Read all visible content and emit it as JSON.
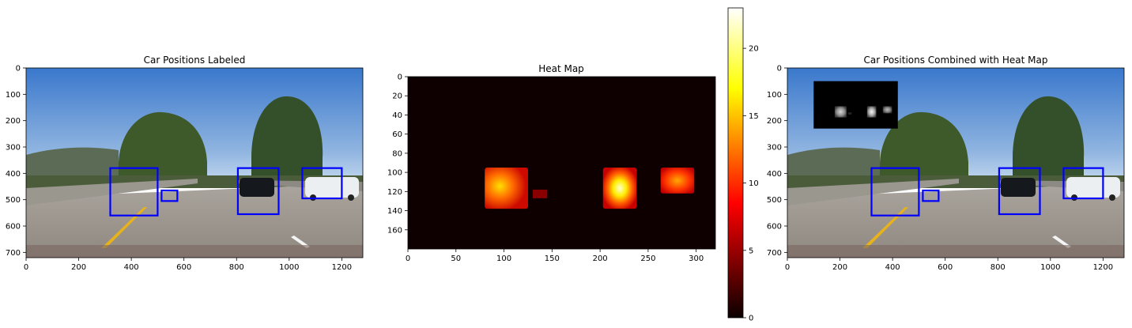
{
  "figure": {
    "colors": {
      "sky_top": "#3f7fd0",
      "sky_bottom": "#bcd3ec",
      "road": "#a39d95",
      "box": "#0000ff",
      "heat_bg": "#0e0000",
      "lane_yellow": "#e8b21c"
    }
  },
  "chart_data": [
    {
      "type": "image",
      "title": "Car Positions Labeled",
      "xlim": [
        0,
        1280
      ],
      "ylim": [
        720,
        0
      ],
      "xticks": [
        "0",
        "200",
        "400",
        "600",
        "800",
        "1000",
        "1200"
      ],
      "yticks": [
        "0",
        "100",
        "200",
        "300",
        "400",
        "500",
        "600",
        "700"
      ],
      "boxes": [
        {
          "x0": 320,
          "y0": 380,
          "x1": 500,
          "y1": 560
        },
        {
          "x0": 515,
          "y0": 465,
          "x1": 575,
          "y1": 505
        },
        {
          "x0": 805,
          "y0": 380,
          "x1": 960,
          "y1": 555
        },
        {
          "x0": 1050,
          "y0": 380,
          "x1": 1200,
          "y1": 495
        }
      ]
    },
    {
      "type": "heatmap",
      "title": "Heat Map",
      "xlim": [
        0,
        320
      ],
      "ylim": [
        180,
        0
      ],
      "xticks": [
        "0",
        "50",
        "100",
        "150",
        "200",
        "250",
        "300"
      ],
      "yticks": [
        "0",
        "20",
        "40",
        "60",
        "80",
        "100",
        "120",
        "140",
        "160"
      ],
      "colormap": "hot",
      "vmin": 0,
      "vmax": 23,
      "colorbar_ticks": [
        "0",
        "5",
        "10",
        "15",
        "20"
      ],
      "blobs": [
        {
          "x0": 80,
          "y0": 95,
          "x1": 125,
          "y1": 138,
          "peak": 17
        },
        {
          "x0": 130,
          "y0": 118,
          "x1": 145,
          "y1": 127,
          "peak": 6
        },
        {
          "x0": 203,
          "y0": 95,
          "x1": 238,
          "y1": 138,
          "peak": 22
        },
        {
          "x0": 263,
          "y0": 95,
          "x1": 298,
          "y1": 122,
          "peak": 13
        }
      ]
    },
    {
      "type": "image",
      "title": "Car Positions Combined with Heat Map",
      "xlim": [
        0,
        1280
      ],
      "ylim": [
        720,
        0
      ],
      "xticks": [
        "0",
        "200",
        "400",
        "600",
        "800",
        "1000",
        "1200"
      ],
      "yticks": [
        "0",
        "100",
        "200",
        "300",
        "400",
        "500",
        "600",
        "700"
      ],
      "inset": {
        "x0": 100,
        "y0": 50,
        "x1": 420,
        "y1": 230
      },
      "boxes": [
        {
          "x0": 320,
          "y0": 380,
          "x1": 500,
          "y1": 560
        },
        {
          "x0": 515,
          "y0": 465,
          "x1": 575,
          "y1": 505
        },
        {
          "x0": 805,
          "y0": 380,
          "x1": 960,
          "y1": 555
        },
        {
          "x0": 1050,
          "y0": 380,
          "x1": 1200,
          "y1": 495
        }
      ]
    }
  ]
}
